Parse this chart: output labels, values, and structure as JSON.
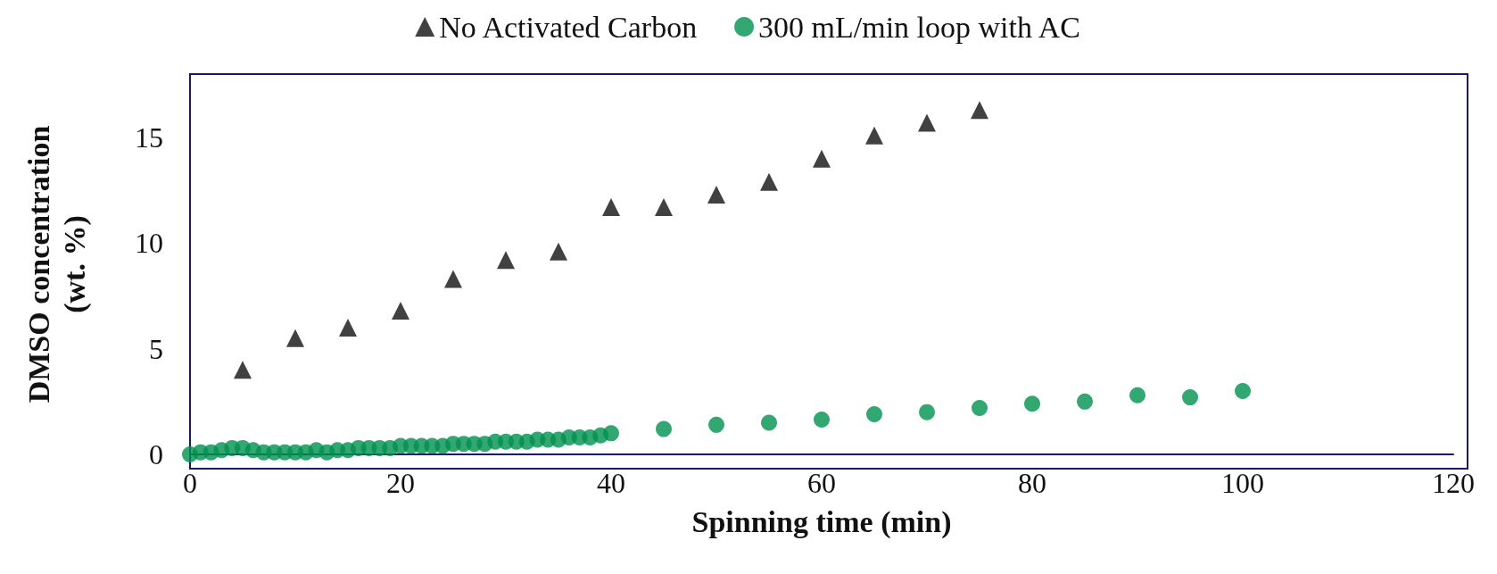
{
  "chart_data": {
    "type": "scatter",
    "xlabel": "Spinning time (min)",
    "ylabel": "DMSO concentration\n(wt. %)",
    "xlim": [
      0,
      120
    ],
    "xticks": [
      0,
      20,
      40,
      60,
      80,
      100,
      120
    ],
    "ylim": [
      0,
      18
    ],
    "yticks": [
      0,
      5,
      10,
      15
    ],
    "grid": false,
    "legend": "top",
    "series": [
      {
        "name": "No Activated Carbon",
        "color": "#111111",
        "marker": "triangle",
        "x": [
          5,
          10,
          15,
          20,
          25,
          30,
          35,
          40,
          45,
          50,
          55,
          60,
          65,
          70,
          75
        ],
        "values": [
          4.0,
          5.5,
          6.0,
          6.8,
          8.3,
          9.2,
          9.6,
          11.7,
          11.7,
          12.3,
          12.9,
          14.0,
          15.1,
          15.7,
          16.3
        ]
      },
      {
        "name": "300 mL/min loop with AC",
        "color": "#00914f",
        "marker": "circle",
        "x": [
          0,
          1,
          2,
          3,
          4,
          5,
          6,
          7,
          8,
          9,
          10,
          11,
          12,
          13,
          14,
          15,
          16,
          17,
          18,
          19,
          20,
          21,
          22,
          23,
          24,
          25,
          26,
          27,
          28,
          29,
          30,
          31,
          32,
          33,
          34,
          35,
          36,
          37,
          38,
          39,
          40,
          45,
          50,
          55,
          60,
          65,
          70,
          75,
          80,
          85,
          90,
          95,
          100
        ],
        "values": [
          0,
          0.1,
          0.1,
          0.2,
          0.3,
          0.3,
          0.2,
          0.1,
          0.1,
          0.1,
          0.1,
          0.1,
          0.2,
          0.1,
          0.2,
          0.2,
          0.3,
          0.3,
          0.3,
          0.3,
          0.4,
          0.4,
          0.4,
          0.4,
          0.4,
          0.5,
          0.5,
          0.5,
          0.5,
          0.6,
          0.6,
          0.6,
          0.6,
          0.7,
          0.7,
          0.7,
          0.8,
          0.8,
          0.8,
          0.9,
          1.0,
          1.2,
          1.4,
          1.5,
          1.65,
          1.9,
          2.0,
          2.2,
          2.4,
          2.5,
          2.8,
          2.7,
          3.0
        ]
      }
    ]
  }
}
